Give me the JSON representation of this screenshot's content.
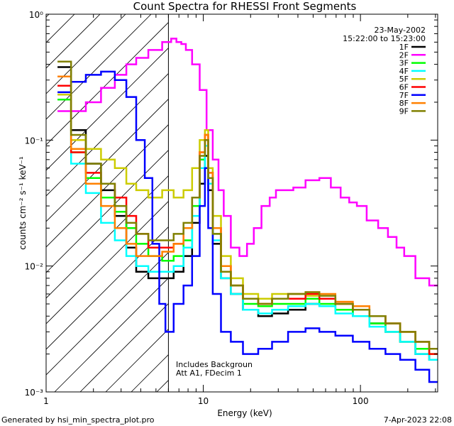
{
  "chart_data": {
    "type": "line",
    "title": "Count Spectra for RHESSI Front Segments",
    "xlabel": "Energy (keV)",
    "ylabel": "counts cm⁻² s⁻¹ keV⁻¹",
    "xscale": "log",
    "yscale": "log",
    "xlim": [
      1,
      310
    ],
    "ylim": [
      0.001,
      1.0
    ],
    "x_tick_labels": [
      {
        "value": 1,
        "label": "1"
      },
      {
        "value": 10,
        "label": "10"
      },
      {
        "value": 100,
        "label": "100"
      }
    ],
    "y_tick_labels": [
      {
        "value": 1.0,
        "label": "10⁰"
      },
      {
        "value": 0.1,
        "label": "10⁻¹"
      },
      {
        "value": 0.01,
        "label": "10⁻²"
      },
      {
        "value": 0.001,
        "label": "10⁻³"
      }
    ],
    "date": "23-May-2002",
    "time_range": "15:22:00 to 15:23:00",
    "hatched_region_upper_energy": 6,
    "annotation_line1": "Includes Backgroun",
    "annotation_line2": "Att A1, FDecim 1",
    "series": [
      {
        "name": "1F",
        "color": "#000000",
        "points": [
          [
            1.3,
            0.38
          ],
          [
            1.6,
            0.12
          ],
          [
            2,
            0.065
          ],
          [
            2.5,
            0.04
          ],
          [
            3,
            0.025
          ],
          [
            3.5,
            0.014
          ],
          [
            4,
            0.009
          ],
          [
            5,
            0.008
          ],
          [
            6,
            0.008
          ],
          [
            7,
            0.009
          ],
          [
            8,
            0.012
          ],
          [
            9,
            0.022
          ],
          [
            10,
            0.045
          ],
          [
            10.5,
            0.075
          ],
          [
            11,
            0.04
          ],
          [
            12,
            0.015
          ],
          [
            14,
            0.008
          ],
          [
            16,
            0.006
          ],
          [
            20,
            0.0045
          ],
          [
            25,
            0.004
          ],
          [
            30,
            0.0042
          ],
          [
            40,
            0.0045
          ],
          [
            50,
            0.005
          ],
          [
            60,
            0.0048
          ],
          [
            80,
            0.0045
          ],
          [
            100,
            0.004
          ],
          [
            130,
            0.0035
          ],
          [
            160,
            0.003
          ],
          [
            200,
            0.0025
          ],
          [
            250,
            0.002
          ],
          [
            300,
            0.0018
          ]
        ]
      },
      {
        "name": "2F",
        "color": "#ff00ff",
        "points": [
          [
            1.3,
            0.17
          ],
          [
            1.6,
            0.17
          ],
          [
            2,
            0.2
          ],
          [
            2.5,
            0.26
          ],
          [
            3,
            0.33
          ],
          [
            3.5,
            0.4
          ],
          [
            4,
            0.45
          ],
          [
            5,
            0.52
          ],
          [
            6,
            0.6
          ],
          [
            6.5,
            0.64
          ],
          [
            7,
            0.6
          ],
          [
            7.5,
            0.58
          ],
          [
            8,
            0.52
          ],
          [
            9,
            0.4
          ],
          [
            10,
            0.25
          ],
          [
            11,
            0.12
          ],
          [
            12,
            0.07
          ],
          [
            13,
            0.04
          ],
          [
            14,
            0.025
          ],
          [
            16,
            0.014
          ],
          [
            18,
            0.012
          ],
          [
            20,
            0.015
          ],
          [
            22,
            0.02
          ],
          [
            25,
            0.03
          ],
          [
            28,
            0.035
          ],
          [
            30,
            0.04
          ],
          [
            35,
            0.04
          ],
          [
            40,
            0.042
          ],
          [
            50,
            0.048
          ],
          [
            60,
            0.05
          ],
          [
            70,
            0.042
          ],
          [
            80,
            0.035
          ],
          [
            90,
            0.032
          ],
          [
            100,
            0.03
          ],
          [
            120,
            0.023
          ],
          [
            140,
            0.02
          ],
          [
            160,
            0.017
          ],
          [
            180,
            0.014
          ],
          [
            200,
            0.012
          ],
          [
            250,
            0.008
          ],
          [
            300,
            0.007
          ]
        ]
      },
      {
        "name": "3F",
        "color": "#00ff00",
        "points": [
          [
            1.3,
            0.21
          ],
          [
            1.6,
            0.08
          ],
          [
            2,
            0.05
          ],
          [
            2.5,
            0.035
          ],
          [
            3,
            0.027
          ],
          [
            3.5,
            0.02
          ],
          [
            4,
            0.015
          ],
          [
            5,
            0.012
          ],
          [
            6,
            0.011
          ],
          [
            7,
            0.012
          ],
          [
            8,
            0.016
          ],
          [
            9,
            0.03
          ],
          [
            10,
            0.07
          ],
          [
            10.5,
            0.1
          ],
          [
            11,
            0.05
          ],
          [
            12,
            0.018
          ],
          [
            14,
            0.009
          ],
          [
            16,
            0.007
          ],
          [
            20,
            0.005
          ],
          [
            25,
            0.0048
          ],
          [
            30,
            0.005
          ],
          [
            40,
            0.005
          ],
          [
            50,
            0.0055
          ],
          [
            60,
            0.005
          ],
          [
            80,
            0.0045
          ],
          [
            100,
            0.004
          ],
          [
            130,
            0.0035
          ],
          [
            160,
            0.003
          ],
          [
            200,
            0.0025
          ],
          [
            250,
            0.0022
          ],
          [
            300,
            0.002
          ]
        ]
      },
      {
        "name": "4F",
        "color": "#00ffff",
        "points": [
          [
            1.3,
            0.27
          ],
          [
            1.6,
            0.065
          ],
          [
            2,
            0.038
          ],
          [
            2.5,
            0.022
          ],
          [
            3,
            0.016
          ],
          [
            3.5,
            0.012
          ],
          [
            4,
            0.01
          ],
          [
            5,
            0.009
          ],
          [
            6,
            0.009
          ],
          [
            7,
            0.01
          ],
          [
            8,
            0.014
          ],
          [
            9,
            0.025
          ],
          [
            10,
            0.06
          ],
          [
            10.5,
            0.09
          ],
          [
            11,
            0.045
          ],
          [
            12,
            0.016
          ],
          [
            14,
            0.008
          ],
          [
            16,
            0.006
          ],
          [
            20,
            0.0045
          ],
          [
            25,
            0.0042
          ],
          [
            30,
            0.0045
          ],
          [
            40,
            0.0048
          ],
          [
            50,
            0.005
          ],
          [
            60,
            0.0048
          ],
          [
            80,
            0.0042
          ],
          [
            100,
            0.004
          ],
          [
            130,
            0.0033
          ],
          [
            160,
            0.003
          ],
          [
            200,
            0.0025
          ],
          [
            250,
            0.002
          ],
          [
            300,
            0.0018
          ]
        ]
      },
      {
        "name": "5F",
        "color": "#cccc00",
        "points": [
          [
            1.3,
            0.23
          ],
          [
            1.6,
            0.1
          ],
          [
            2,
            0.085
          ],
          [
            2.5,
            0.07
          ],
          [
            3,
            0.06
          ],
          [
            3.5,
            0.045
          ],
          [
            4,
            0.04
          ],
          [
            5,
            0.035
          ],
          [
            6,
            0.04
          ],
          [
            7,
            0.035
          ],
          [
            8,
            0.04
          ],
          [
            9,
            0.06
          ],
          [
            10,
            0.1
          ],
          [
            10.5,
            0.12
          ],
          [
            11,
            0.06
          ],
          [
            12,
            0.025
          ],
          [
            14,
            0.012
          ],
          [
            16,
            0.008
          ],
          [
            20,
            0.006
          ],
          [
            25,
            0.0055
          ],
          [
            30,
            0.006
          ],
          [
            40,
            0.006
          ],
          [
            50,
            0.0058
          ],
          [
            60,
            0.0055
          ],
          [
            80,
            0.005
          ],
          [
            100,
            0.0045
          ],
          [
            130,
            0.004
          ],
          [
            160,
            0.0035
          ],
          [
            200,
            0.003
          ],
          [
            250,
            0.0025
          ],
          [
            300,
            0.002
          ]
        ]
      },
      {
        "name": "6F",
        "color": "#ff0000",
        "points": [
          [
            1.3,
            0.27
          ],
          [
            1.6,
            0.08
          ],
          [
            2,
            0.055
          ],
          [
            2.5,
            0.045
          ],
          [
            3,
            0.035
          ],
          [
            3.5,
            0.025
          ],
          [
            4,
            0.018
          ],
          [
            5,
            0.014
          ],
          [
            6,
            0.014
          ],
          [
            7,
            0.015
          ],
          [
            8,
            0.02
          ],
          [
            9,
            0.035
          ],
          [
            10,
            0.08
          ],
          [
            10.5,
            0.11
          ],
          [
            11,
            0.055
          ],
          [
            12,
            0.02
          ],
          [
            14,
            0.01
          ],
          [
            16,
            0.007
          ],
          [
            20,
            0.0055
          ],
          [
            25,
            0.005
          ],
          [
            30,
            0.0055
          ],
          [
            40,
            0.0055
          ],
          [
            50,
            0.006
          ],
          [
            60,
            0.0055
          ],
          [
            80,
            0.005
          ],
          [
            100,
            0.0045
          ],
          [
            130,
            0.004
          ],
          [
            160,
            0.0035
          ],
          [
            200,
            0.003
          ],
          [
            250,
            0.0025
          ],
          [
            300,
            0.002
          ]
        ]
      },
      {
        "name": "7F",
        "color": "#0000ff",
        "points": [
          [
            1.3,
            0.24
          ],
          [
            1.6,
            0.29
          ],
          [
            2,
            0.33
          ],
          [
            2.5,
            0.35
          ],
          [
            3,
            0.3
          ],
          [
            3.5,
            0.22
          ],
          [
            4,
            0.1
          ],
          [
            4.5,
            0.05
          ],
          [
            5,
            0.015
          ],
          [
            5.5,
            0.005
          ],
          [
            6,
            0.003
          ],
          [
            7,
            0.005
          ],
          [
            8,
            0.007
          ],
          [
            9,
            0.012
          ],
          [
            10,
            0.03
          ],
          [
            10.5,
            0.06
          ],
          [
            11,
            0.02
          ],
          [
            12,
            0.006
          ],
          [
            14,
            0.003
          ],
          [
            16,
            0.0025
          ],
          [
            20,
            0.002
          ],
          [
            25,
            0.0022
          ],
          [
            30,
            0.0025
          ],
          [
            40,
            0.003
          ],
          [
            50,
            0.0032
          ],
          [
            60,
            0.003
          ],
          [
            80,
            0.0028
          ],
          [
            100,
            0.0025
          ],
          [
            130,
            0.0022
          ],
          [
            160,
            0.002
          ],
          [
            200,
            0.0018
          ],
          [
            250,
            0.0015
          ],
          [
            300,
            0.0012
          ]
        ]
      },
      {
        "name": "8F",
        "color": "#ff8000",
        "points": [
          [
            1.3,
            0.32
          ],
          [
            1.6,
            0.085
          ],
          [
            2,
            0.045
          ],
          [
            2.5,
            0.03
          ],
          [
            3,
            0.02
          ],
          [
            3.5,
            0.015
          ],
          [
            4,
            0.012
          ],
          [
            5,
            0.012
          ],
          [
            6,
            0.013
          ],
          [
            7,
            0.015
          ],
          [
            8,
            0.02
          ],
          [
            9,
            0.035
          ],
          [
            10,
            0.08
          ],
          [
            10.5,
            0.11
          ],
          [
            11,
            0.055
          ],
          [
            12,
            0.02
          ],
          [
            14,
            0.01
          ],
          [
            16,
            0.007
          ],
          [
            20,
            0.0055
          ],
          [
            25,
            0.005
          ],
          [
            30,
            0.0055
          ],
          [
            40,
            0.006
          ],
          [
            50,
            0.0062
          ],
          [
            60,
            0.006
          ],
          [
            80,
            0.0052
          ],
          [
            100,
            0.0048
          ],
          [
            130,
            0.004
          ],
          [
            160,
            0.0035
          ],
          [
            200,
            0.003
          ],
          [
            250,
            0.0025
          ],
          [
            300,
            0.0022
          ]
        ]
      },
      {
        "name": "9F",
        "color": "#808000",
        "points": [
          [
            1.3,
            0.42
          ],
          [
            1.6,
            0.11
          ],
          [
            2,
            0.065
          ],
          [
            2.5,
            0.045
          ],
          [
            3,
            0.03
          ],
          [
            3.5,
            0.022
          ],
          [
            4,
            0.018
          ],
          [
            5,
            0.016
          ],
          [
            6,
            0.016
          ],
          [
            7,
            0.018
          ],
          [
            8,
            0.022
          ],
          [
            9,
            0.035
          ],
          [
            10,
            0.075
          ],
          [
            10.5,
            0.1
          ],
          [
            11,
            0.05
          ],
          [
            12,
            0.018
          ],
          [
            14,
            0.009
          ],
          [
            16,
            0.007
          ],
          [
            20,
            0.0055
          ],
          [
            25,
            0.005
          ],
          [
            30,
            0.0055
          ],
          [
            40,
            0.006
          ],
          [
            50,
            0.0062
          ],
          [
            60,
            0.0058
          ],
          [
            80,
            0.005
          ],
          [
            100,
            0.0045
          ],
          [
            130,
            0.004
          ],
          [
            160,
            0.0035
          ],
          [
            200,
            0.003
          ],
          [
            250,
            0.0025
          ],
          [
            300,
            0.0022
          ]
        ]
      }
    ]
  },
  "footer": {
    "generated_by": "Generated by hsi_min_spectra_plot.pro",
    "timestamp": "7-Apr-2023 22:08"
  }
}
